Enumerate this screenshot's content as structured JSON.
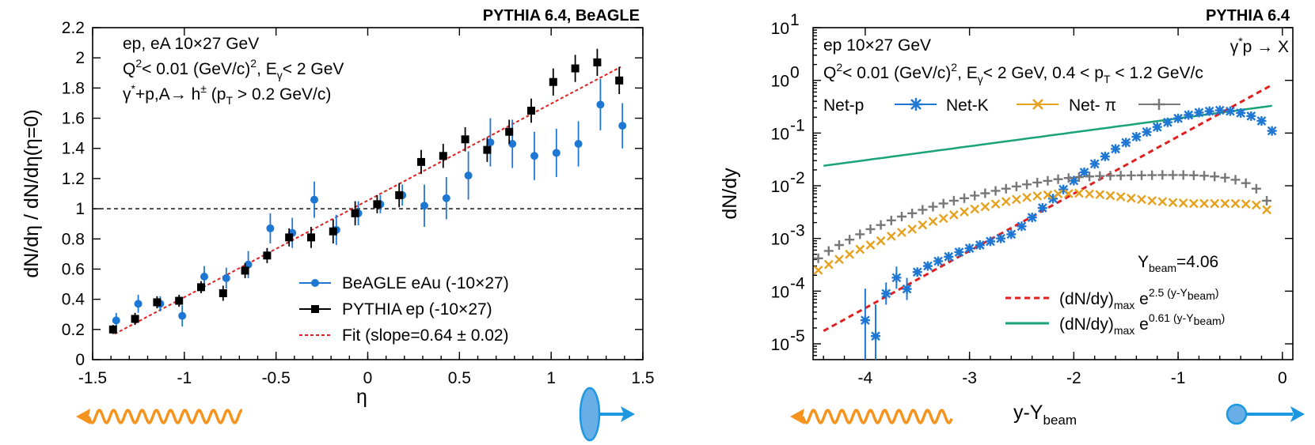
{
  "colors": {
    "beagle": "#1f77d4",
    "pythia": "#000000",
    "fit": "#e02020",
    "ref": "#bbbbbb",
    "net_p": "#1f77d4",
    "net_k": "#e6a11e",
    "net_pi": "#777777",
    "green": "#1aa37a",
    "photon": "#f5931e",
    "beam": "#1b98e0",
    "proton": "#6aaee8"
  },
  "icons": {
    "left_photon": "wavy-photon-arrow-icon",
    "left_proton": "proton-ellipse-arrow-icon",
    "right_photon": "wavy-photon-arrow-icon",
    "right_proton": "proton-circle-arrow-icon"
  },
  "chart_data": [
    {
      "type": "scatter",
      "header": "PYTHIA 6.4, BeAGLE",
      "xlabel": "η",
      "ylabel": "dN/dη / dN/dη(η=0)",
      "xlim": [
        -1.5,
        1.5
      ],
      "ylim": [
        0,
        2.2
      ],
      "xticks": [
        -1.5,
        -1,
        -0.5,
        0,
        0.5,
        1,
        1.5
      ],
      "xtick_labels": [
        "-1.5",
        "-1",
        "-0.5",
        "0",
        "0.5",
        "1",
        "1.5"
      ],
      "yticks": [
        0,
        0.2,
        0.4,
        0.6,
        0.8,
        1,
        1.2,
        1.4,
        1.6,
        1.8,
        2,
        2.2
      ],
      "ytick_labels": [
        "0",
        "0.2",
        "0.4",
        "0.6",
        "0.8",
        "1",
        "1.2",
        "1.4",
        "1.6",
        "1.8",
        "2",
        "2.2"
      ],
      "annotations": {
        "line1": "ep, eA 10×27 GeV",
        "line2_a": "Q",
        "line2_sup": "2",
        "line2_b": "< 0.01 (GeV/c)",
        "line2_sup2": "2",
        "line2_c": ", E",
        "line2_sub": "γ",
        "line2_d": "< 2 GeV",
        "line3_a": "γ",
        "line3_sup": "*",
        "line3_b": "+p,A→ h",
        "line3_sup2": "±",
        "line3_c": " (p",
        "line3_sub": "T",
        "line3_d": " > 0.2 GeV/c)"
      },
      "reference_line": 1,
      "legend": {
        "beagle": "BeAGLE eAu (-10×27)",
        "pythia": "PYTHIA ep (-10×27)",
        "fit": "Fit (slope=0.64 ± 0.02)"
      },
      "fit": {
        "x": [
          -1.38,
          1.38
        ],
        "y": [
          0.17,
          1.94
        ]
      },
      "series": [
        {
          "name": "BeAGLE eAu (-10×27)",
          "marker": "circle",
          "x": [
            -1.38,
            -1.26,
            -1.14,
            -1.02,
            -0.9,
            -0.78,
            -0.66,
            -0.54,
            -0.42,
            -0.3,
            -0.18,
            -0.06,
            0.06,
            0.18,
            0.3,
            0.42,
            0.54,
            0.66,
            0.78,
            0.9,
            1.02,
            1.14,
            1.26,
            1.38
          ],
          "y": [
            0.26,
            0.37,
            0.37,
            0.29,
            0.55,
            0.54,
            0.63,
            0.87,
            0.84,
            1.06,
            0.86,
            0.97,
            1.03,
            1.09,
            1.02,
            1.07,
            1.22,
            1.44,
            1.43,
            1.35,
            1.37,
            1.43,
            1.69,
            1.55
          ],
          "err": [
            0.05,
            0.06,
            0.05,
            0.07,
            0.07,
            0.07,
            0.09,
            0.1,
            0.1,
            0.12,
            0.1,
            0.08,
            0.06,
            0.07,
            0.14,
            0.14,
            0.16,
            0.16,
            0.16,
            0.16,
            0.16,
            0.15,
            0.17,
            0.15
          ]
        },
        {
          "name": "PYTHIA ep (-10×27)",
          "marker": "square",
          "x": [
            -1.38,
            -1.26,
            -1.14,
            -1.02,
            -0.9,
            -0.78,
            -0.66,
            -0.54,
            -0.42,
            -0.3,
            -0.18,
            -0.06,
            0.06,
            0.18,
            0.3,
            0.42,
            0.54,
            0.66,
            0.78,
            0.9,
            1.02,
            1.14,
            1.26,
            1.38
          ],
          "y": [
            0.2,
            0.27,
            0.38,
            0.39,
            0.48,
            0.44,
            0.59,
            0.69,
            0.81,
            0.81,
            0.85,
            0.97,
            1.03,
            1.09,
            1.31,
            1.35,
            1.46,
            1.39,
            1.51,
            1.65,
            1.84,
            1.93,
            1.97,
            1.85
          ],
          "err": [
            0.03,
            0.04,
            0.04,
            0.04,
            0.04,
            0.05,
            0.05,
            0.05,
            0.06,
            0.07,
            0.08,
            0.08,
            0.06,
            0.08,
            0.08,
            0.08,
            0.08,
            0.08,
            0.08,
            0.08,
            0.09,
            0.09,
            0.09,
            0.09
          ]
        }
      ]
    },
    {
      "type": "scatter",
      "yscale": "log",
      "header": "PYTHIA 6.4",
      "xlabel_main": "y-Y",
      "xlabel_sub": "beam",
      "ylabel": "dN/dy",
      "xlim": [
        -4.5,
        0.1
      ],
      "ylim_exp": [
        -5.3,
        1
      ],
      "xticks": [
        -4,
        -3,
        -2,
        -1,
        0
      ],
      "xtick_labels": [
        "-4",
        "-3",
        "-2",
        "-1",
        "0"
      ],
      "yticks_exp": [
        1,
        0,
        -1,
        -2,
        -3,
        -4,
        -5
      ],
      "ytick_mantissa": "10",
      "ytick_exps": [
        "1",
        "0",
        "-1",
        "-2",
        "-3",
        "-4",
        "-5"
      ],
      "annotations": {
        "line1": "ep 10×27 GeV",
        "line2_a": "Q",
        "line2_sup": "2",
        "line2_b": "< 0.01 (GeV/c)",
        "line2_sup2": "2",
        "line2_c": ", E",
        "line2_sub": "γ",
        "line2_d": "< 2 GeV, 0.4 < p",
        "line2_sub2": "T",
        "line2_e": " < 1.2 GeV/c",
        "process_a": "γ",
        "process_sup": "*",
        "process_b": "p → X",
        "ybeam_a": "Y",
        "ybeam_sub": "beam",
        "ybeam_b": "=4.06"
      },
      "legend_top": {
        "net_p": "Net-p",
        "net_k": "Net-K",
        "net_pi": "Net- π"
      },
      "legend_bottom": {
        "red_a": "(dN/dy)",
        "red_sub": "max",
        "red_b": " e",
        "red_sup": "2.5 (y-Y",
        "red_sup_sub": "beam",
        "red_sup_end": ")",
        "green_a": "(dN/dy)",
        "green_sub": "max",
        "green_b": " e",
        "green_sup": "0.61 (y-Y",
        "green_sup_sub": "beam",
        "green_sup_end": ")"
      },
      "red_fit": {
        "amplitude": 1.05,
        "slope": 2.5
      },
      "green_fit": {
        "amplitude": 0.35,
        "slope": 0.61
      },
      "curve_range": [
        -4.4,
        -0.1
      ],
      "series": [
        {
          "name": "Net-p",
          "marker": "star",
          "x": [
            -4.0,
            -3.9,
            -3.8,
            -3.7,
            -3.6,
            -3.5,
            -3.4,
            -3.3,
            -3.2,
            -3.1,
            -3.0,
            -2.9,
            -2.8,
            -2.7,
            -2.6,
            -2.5,
            -2.4,
            -2.3,
            -2.2,
            -2.1,
            -2.0,
            -1.9,
            -1.8,
            -1.7,
            -1.6,
            -1.5,
            -1.4,
            -1.3,
            -1.2,
            -1.1,
            -1.0,
            -0.9,
            -0.8,
            -0.7,
            -0.6,
            -0.5,
            -0.4,
            -0.3,
            -0.2,
            -0.1
          ],
          "y": [
            2.8e-05,
            1.4e-05,
            9e-05,
            0.00018,
            0.00011,
            0.00023,
            0.0003,
            0.00037,
            0.00045,
            0.00055,
            0.00065,
            0.00075,
            0.00088,
            0.001,
            0.0012,
            0.0017,
            0.0025,
            0.0038,
            0.0057,
            0.0085,
            0.0125,
            0.018,
            0.026,
            0.036,
            0.05,
            0.066,
            0.085,
            0.105,
            0.13,
            0.16,
            0.19,
            0.22,
            0.245,
            0.26,
            0.27,
            0.26,
            0.24,
            0.21,
            0.17,
            0.11
          ]
        },
        {
          "name": "Net-K",
          "marker": "x",
          "x": [
            -4.45,
            -4.35,
            -4.25,
            -4.15,
            -4.05,
            -3.95,
            -3.85,
            -3.75,
            -3.65,
            -3.55,
            -3.45,
            -3.35,
            -3.25,
            -3.15,
            -3.05,
            -2.95,
            -2.85,
            -2.75,
            -2.65,
            -2.55,
            -2.45,
            -2.35,
            -2.25,
            -2.15,
            -2.05,
            -1.95,
            -1.85,
            -1.75,
            -1.65,
            -1.55,
            -1.45,
            -1.35,
            -1.25,
            -1.15,
            -1.05,
            -0.95,
            -0.85,
            -0.75,
            -0.65,
            -0.55,
            -0.45,
            -0.35,
            -0.25,
            -0.15
          ],
          "y": [
            0.00025,
            0.00032,
            0.0004,
            0.0005,
            0.00062,
            0.00075,
            0.0009,
            0.0011,
            0.0013,
            0.0015,
            0.0018,
            0.0021,
            0.0024,
            0.0028,
            0.0032,
            0.0036,
            0.004,
            0.0045,
            0.005,
            0.0055,
            0.006,
            0.0064,
            0.0067,
            0.007,
            0.0071,
            0.0072,
            0.007,
            0.0068,
            0.0065,
            0.0062,
            0.0058,
            0.0055,
            0.0052,
            0.005,
            0.0048,
            0.0047,
            0.0046,
            0.0046,
            0.0046,
            0.0046,
            0.0046,
            0.0045,
            0.0043,
            0.0035
          ]
        },
        {
          "name": "Net- π",
          "marker": "plus",
          "x": [
            -4.45,
            -4.35,
            -4.25,
            -4.15,
            -4.05,
            -3.95,
            -3.85,
            -3.75,
            -3.65,
            -3.55,
            -3.45,
            -3.35,
            -3.25,
            -3.15,
            -3.05,
            -2.95,
            -2.85,
            -2.75,
            -2.65,
            -2.55,
            -2.45,
            -2.35,
            -2.25,
            -2.15,
            -2.05,
            -1.95,
            -1.85,
            -1.75,
            -1.65,
            -1.55,
            -1.45,
            -1.35,
            -1.25,
            -1.15,
            -1.05,
            -0.95,
            -0.85,
            -0.75,
            -0.65,
            -0.55,
            -0.45,
            -0.35,
            -0.25,
            -0.15
          ],
          "y": [
            0.00042,
            0.00058,
            0.00075,
            0.00095,
            0.0012,
            0.0015,
            0.0018,
            0.0022,
            0.0026,
            0.003,
            0.0035,
            0.004,
            0.0046,
            0.0052,
            0.0058,
            0.0065,
            0.0072,
            0.008,
            0.0088,
            0.0097,
            0.0106,
            0.0115,
            0.0124,
            0.0133,
            0.014,
            0.0146,
            0.015,
            0.0153,
            0.0155,
            0.0156,
            0.0157,
            0.0158,
            0.0159,
            0.016,
            0.016,
            0.016,
            0.0158,
            0.0155,
            0.015,
            0.0142,
            0.013,
            0.0112,
            0.0088,
            0.0052
          ]
        }
      ]
    }
  ]
}
